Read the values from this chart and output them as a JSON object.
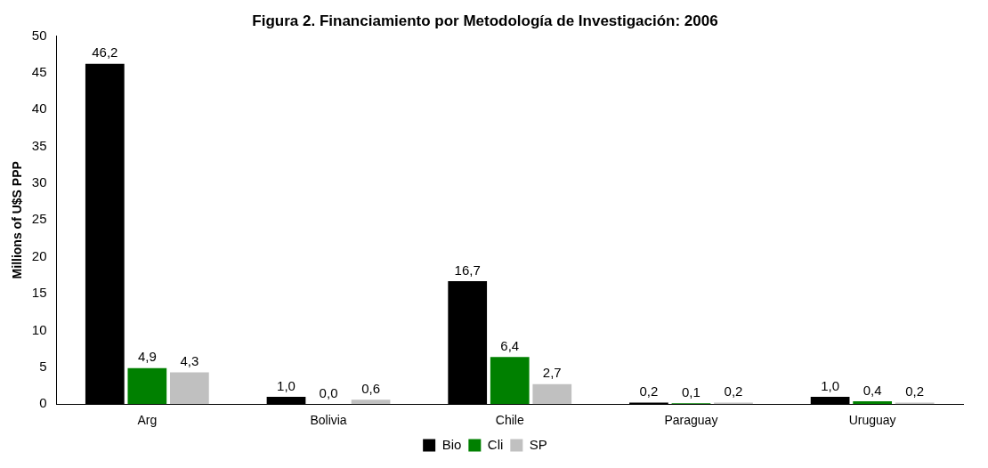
{
  "chart_data": {
    "type": "bar",
    "title": "Figura 2. Financiamiento por Metodología de Investigación: 2006",
    "ylabel": "Millions of U$S PPP",
    "categories": [
      "Arg",
      "Bolivia",
      "Chile",
      "Paraguay",
      "Uruguay"
    ],
    "series": [
      {
        "name": "Bio",
        "color": "#000000",
        "values": [
          46.2,
          1.0,
          16.7,
          0.2,
          1.0
        ],
        "value_labels": [
          "46,2",
          "1,0",
          "16,7",
          "0,2",
          "1,0"
        ]
      },
      {
        "name": "Cli",
        "color": "#008000",
        "values": [
          4.9,
          0.0,
          6.4,
          0.1,
          0.4
        ],
        "value_labels": [
          "4,9",
          "0,0",
          "6,4",
          "0,1",
          "0,4"
        ]
      },
      {
        "name": "SP",
        "color": "#c0c0c0",
        "values": [
          4.3,
          0.6,
          2.7,
          0.2,
          0.2
        ],
        "value_labels": [
          "4,3",
          "0,6",
          "2,7",
          "0,2",
          "0,2"
        ]
      }
    ],
    "ylim": [
      0,
      50
    ],
    "yticks": [
      0,
      5,
      10,
      15,
      20,
      25,
      30,
      35,
      40,
      45,
      50
    ],
    "grid": false,
    "legend": "bottom"
  }
}
